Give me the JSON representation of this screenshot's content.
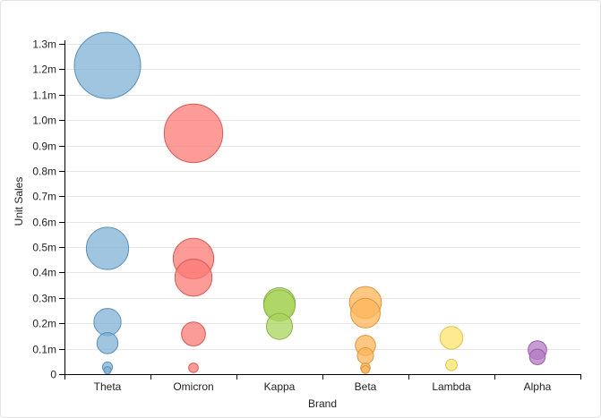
{
  "chart_data": {
    "type": "scatter",
    "subtype": "bubble",
    "xlabel": "Brand",
    "ylabel": "Unit Sales",
    "categories": [
      "Theta",
      "Omicron",
      "Kappa",
      "Beta",
      "Lambda",
      "Alpha"
    ],
    "ylim": [
      0,
      1300000
    ],
    "y_ticks": [
      {
        "value": 0,
        "label": "0"
      },
      {
        "value": 100000,
        "label": "0.1m"
      },
      {
        "value": 200000,
        "label": "0.2m"
      },
      {
        "value": 300000,
        "label": "0.3m"
      },
      {
        "value": 400000,
        "label": "0.4m"
      },
      {
        "value": 500000,
        "label": "0.5m"
      },
      {
        "value": 600000,
        "label": "0.6m"
      },
      {
        "value": 700000,
        "label": "0.7m"
      },
      {
        "value": 800000,
        "label": "0.8m"
      },
      {
        "value": 900000,
        "label": "0.9m"
      },
      {
        "value": 1000000,
        "label": "1.0m"
      },
      {
        "value": 1100000,
        "label": "1.1m"
      },
      {
        "value": 1200000,
        "label": "1.2m"
      },
      {
        "value": 1300000,
        "label": "1.3m"
      }
    ],
    "grid": true,
    "series": [
      {
        "name": "Theta",
        "color": "#7fb1d6",
        "stroke": "#5b8fb8",
        "points": [
          {
            "y": 1215000,
            "size": 1215000
          },
          {
            "y": 495000,
            "size": 495000
          },
          {
            "y": 205000,
            "size": 205000
          },
          {
            "y": 122000,
            "size": 122000
          },
          {
            "y": 28000,
            "size": 28000
          },
          {
            "y": 15000,
            "size": 15000
          }
        ]
      },
      {
        "name": "Omicron",
        "color": "#fb7a74",
        "stroke": "#d85a55",
        "points": [
          {
            "y": 948000,
            "size": 948000
          },
          {
            "y": 455000,
            "size": 455000
          },
          {
            "y": 380000,
            "size": 380000
          },
          {
            "y": 158000,
            "size": 158000
          },
          {
            "y": 25000,
            "size": 25000
          }
        ]
      },
      {
        "name": "Kappa",
        "color": "#a9d45e",
        "stroke": "#88b544",
        "points": [
          {
            "y": 278000,
            "size": 278000
          },
          {
            "y": 270000,
            "size": 270000
          },
          {
            "y": 188000,
            "size": 188000
          }
        ]
      },
      {
        "name": "Beta",
        "color": "#fdb55a",
        "stroke": "#e0953a",
        "points": [
          {
            "y": 282000,
            "size": 282000
          },
          {
            "y": 240000,
            "size": 240000
          },
          {
            "y": 113000,
            "size": 113000
          },
          {
            "y": 72000,
            "size": 72000
          },
          {
            "y": 25000,
            "size": 25000
          },
          {
            "y": 18000,
            "size": 18000
          }
        ]
      },
      {
        "name": "Lambda",
        "color": "#fde36b",
        "stroke": "#e0c44a",
        "points": [
          {
            "y": 143000,
            "size": 143000
          },
          {
            "y": 36000,
            "size": 36000
          }
        ]
      },
      {
        "name": "Alpha",
        "color": "#b57bc4",
        "stroke": "#9a5eab",
        "points": [
          {
            "y": 95000,
            "size": 95000
          },
          {
            "y": 68000,
            "size": 68000
          }
        ]
      }
    ]
  }
}
